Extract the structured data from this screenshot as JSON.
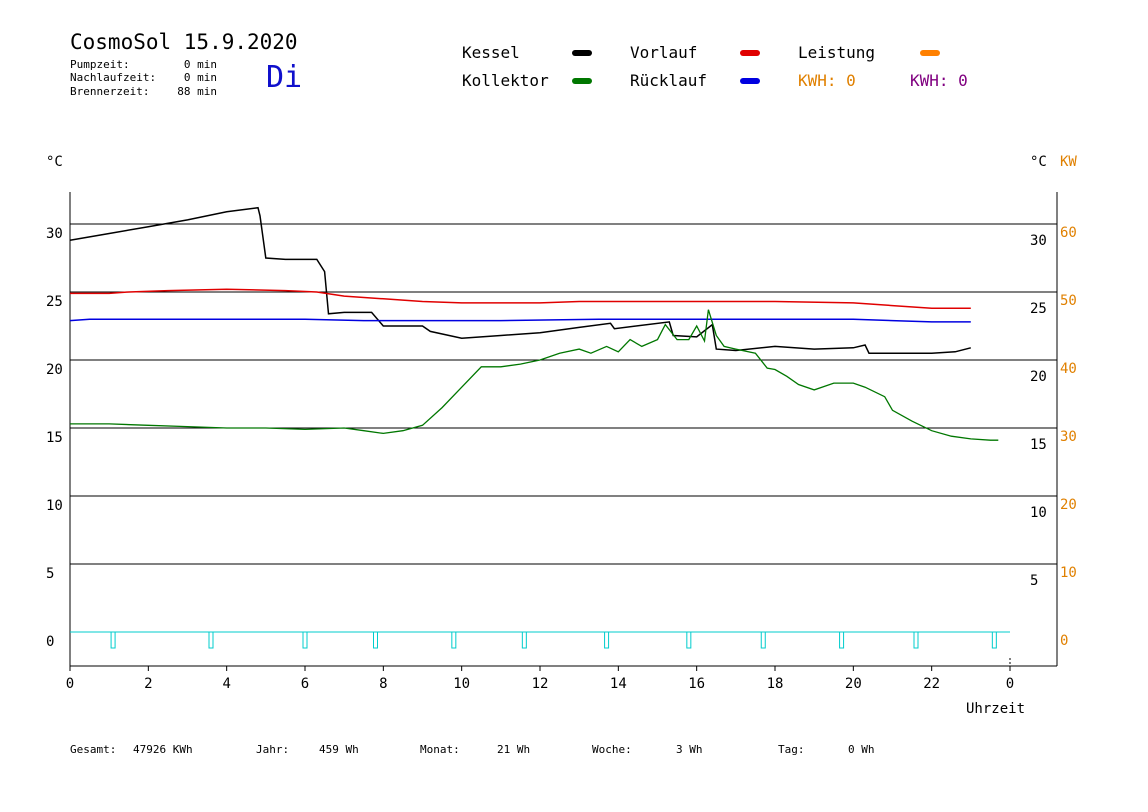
{
  "header": {
    "title": "CosmoSol 15.9.2020",
    "day": "Di",
    "stats": [
      {
        "label": "Pumpzeit:",
        "value": "0 min"
      },
      {
        "label": "Nachlaufzeit:",
        "value": "0 min"
      },
      {
        "label": "Brennerzeit:",
        "value": "88 min"
      }
    ]
  },
  "legend": {
    "kessel": "Kessel",
    "kollektor": "Kollektor",
    "vorlauf": "Vorlauf",
    "ruecklauf": "Rücklauf",
    "leistung": "Leistung",
    "kwh_orange": "KWH: 0",
    "kwh_purple": "KWH: 0"
  },
  "axes": {
    "left_unit": "°C",
    "right_unit_c": "°C",
    "right_unit_kw": "KW",
    "xlabel": "Uhrzeit"
  },
  "colors": {
    "kessel": "#000000",
    "kollektor": "#007700",
    "vorlauf": "#e00000",
    "ruecklauf": "#0000e0",
    "leistung": "#ff8000",
    "kw_axis": "#e08000",
    "kwh_purple": "#800080",
    "pump": "#00cccc"
  },
  "footer": {
    "gesamt_label": "Gesamt:",
    "gesamt_value": "47926 KWh",
    "jahr_label": "Jahr:",
    "jahr_value": "459 Wh",
    "monat_label": "Monat:",
    "monat_value": "21 Wh",
    "woche_label": "Woche:",
    "woche_value": "3 Wh",
    "tag_label": "Tag:",
    "tag_value": "0 Wh"
  },
  "chart_data": {
    "type": "line",
    "x_ticks": [
      "0",
      "2",
      "4",
      "6",
      "8",
      "10",
      "12",
      "14",
      "16",
      "18",
      "20",
      "22",
      "0"
    ],
    "xlim": [
      0,
      24
    ],
    "ylim": [
      0,
      35
    ],
    "left_ticks": [
      0,
      5,
      10,
      15,
      20,
      25,
      30
    ],
    "right_c_ticks": [
      5,
      10,
      15,
      20,
      25,
      30
    ],
    "right_kw_ticks": [
      0,
      10,
      20,
      30,
      40,
      50,
      60
    ],
    "grid": "horizontal",
    "series": [
      {
        "name": "Kessel",
        "color": "#000000",
        "points": [
          [
            0,
            28.8
          ],
          [
            1,
            29.3
          ],
          [
            2,
            29.8
          ],
          [
            3,
            30.3
          ],
          [
            4,
            30.9
          ],
          [
            4.8,
            31.2
          ],
          [
            4.85,
            30.6
          ],
          [
            5,
            27.5
          ],
          [
            5.5,
            27.4
          ],
          [
            6.3,
            27.4
          ],
          [
            6.5,
            26.5
          ],
          [
            6.6,
            23.4
          ],
          [
            7,
            23.5
          ],
          [
            7.7,
            23.5
          ],
          [
            8,
            22.5
          ],
          [
            9,
            22.5
          ],
          [
            9.2,
            22.1
          ],
          [
            10,
            21.6
          ],
          [
            11,
            21.8
          ],
          [
            12,
            22.0
          ],
          [
            13,
            22.4
          ],
          [
            13.8,
            22.7
          ],
          [
            13.9,
            22.3
          ],
          [
            15.3,
            22.8
          ],
          [
            15.4,
            21.8
          ],
          [
            16,
            21.7
          ],
          [
            16.4,
            22.6
          ],
          [
            16.5,
            20.8
          ],
          [
            17,
            20.7
          ],
          [
            18,
            21.0
          ],
          [
            19,
            20.8
          ],
          [
            20,
            20.9
          ],
          [
            20.3,
            21.1
          ],
          [
            20.4,
            20.5
          ],
          [
            22,
            20.5
          ],
          [
            22.6,
            20.6
          ],
          [
            23,
            20.9
          ]
        ]
      },
      {
        "name": "Vorlauf",
        "color": "#e00000",
        "points": [
          [
            0,
            24.9
          ],
          [
            1,
            24.9
          ],
          [
            1.5,
            25.0
          ],
          [
            2.5,
            25.1
          ],
          [
            4,
            25.2
          ],
          [
            5.5,
            25.1
          ],
          [
            6.3,
            25.0
          ],
          [
            7,
            24.7
          ],
          [
            8,
            24.5
          ],
          [
            9,
            24.3
          ],
          [
            10,
            24.2
          ],
          [
            12,
            24.2
          ],
          [
            13,
            24.3
          ],
          [
            15,
            24.3
          ],
          [
            17,
            24.3
          ],
          [
            18,
            24.3
          ],
          [
            20,
            24.2
          ],
          [
            21,
            24.0
          ],
          [
            22,
            23.8
          ],
          [
            23,
            23.8
          ]
        ]
      },
      {
        "name": "Rücklauf",
        "color": "#0000e0",
        "points": [
          [
            0,
            22.9
          ],
          [
            0.5,
            23.0
          ],
          [
            2,
            23.0
          ],
          [
            4,
            23.0
          ],
          [
            6,
            23.0
          ],
          [
            7.5,
            22.9
          ],
          [
            8,
            22.9
          ],
          [
            11,
            22.9
          ],
          [
            13.5,
            23.0
          ],
          [
            16,
            23.0
          ],
          [
            18,
            23.0
          ],
          [
            20,
            23.0
          ],
          [
            21,
            22.9
          ],
          [
            22,
            22.8
          ],
          [
            23,
            22.8
          ]
        ]
      },
      {
        "name": "Kollektor",
        "color": "#007700",
        "points": [
          [
            0,
            15.3
          ],
          [
            1,
            15.3
          ],
          [
            2,
            15.2
          ],
          [
            3,
            15.1
          ],
          [
            4,
            15.0
          ],
          [
            5,
            15.0
          ],
          [
            6,
            14.9
          ],
          [
            7,
            15.0
          ],
          [
            7.5,
            14.8
          ],
          [
            8,
            14.6
          ],
          [
            8.5,
            14.8
          ],
          [
            9,
            15.2
          ],
          [
            9.5,
            16.5
          ],
          [
            10,
            18.0
          ],
          [
            10.5,
            19.5
          ],
          [
            11,
            19.5
          ],
          [
            11.5,
            19.7
          ],
          [
            12,
            20.0
          ],
          [
            12.5,
            20.5
          ],
          [
            13,
            20.8
          ],
          [
            13.3,
            20.5
          ],
          [
            13.7,
            21.0
          ],
          [
            14,
            20.6
          ],
          [
            14.3,
            21.5
          ],
          [
            14.6,
            21.0
          ],
          [
            15,
            21.5
          ],
          [
            15.2,
            22.6
          ],
          [
            15.5,
            21.5
          ],
          [
            15.8,
            21.5
          ],
          [
            16,
            22.5
          ],
          [
            16.2,
            21.4
          ],
          [
            16.3,
            23.7
          ],
          [
            16.5,
            21.8
          ],
          [
            16.7,
            21.0
          ],
          [
            17,
            20.8
          ],
          [
            17.5,
            20.5
          ],
          [
            17.8,
            19.4
          ],
          [
            18,
            19.3
          ],
          [
            18.3,
            18.8
          ],
          [
            18.6,
            18.2
          ],
          [
            19,
            17.8
          ],
          [
            19.5,
            18.3
          ],
          [
            20,
            18.3
          ],
          [
            20.3,
            18.0
          ],
          [
            20.8,
            17.3
          ],
          [
            21,
            16.3
          ],
          [
            21.5,
            15.5
          ],
          [
            22,
            14.8
          ],
          [
            22.5,
            14.4
          ],
          [
            23,
            14.2
          ],
          [
            23.5,
            14.1
          ],
          [
            23.7,
            14.1
          ]
        ]
      }
    ],
    "pump_marks": [
      1.1,
      3.6,
      6.0,
      7.8,
      9.8,
      11.6,
      13.7,
      15.8,
      17.7,
      19.7,
      21.6,
      23.6
    ]
  }
}
